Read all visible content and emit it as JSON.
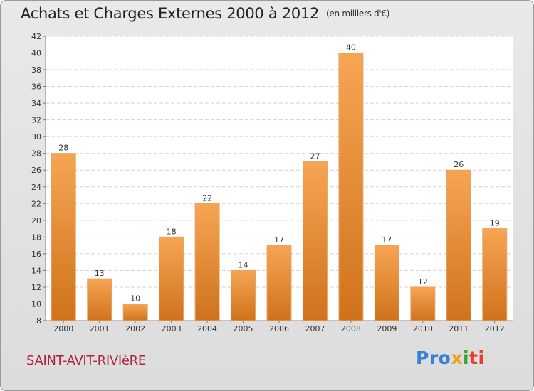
{
  "header": {
    "title": "Achats et Charges Externes 2000 à 2012",
    "subtitle": "(en milliers d'€)"
  },
  "footer": {
    "location": "SAINT-AVIT-RIVIèRE",
    "logo": [
      "Pro",
      "x",
      "i",
      "ti"
    ]
  },
  "colors": {
    "bar_light": "#f6a553",
    "bar_dark": "#d0721c",
    "title_red": "#b01f3d"
  },
  "chart_data": {
    "type": "bar",
    "title": "Achats et Charges Externes 2000 à 2012",
    "xlabel": "",
    "ylabel": "",
    "categories": [
      "2000",
      "2001",
      "2002",
      "2003",
      "2004",
      "2005",
      "2006",
      "2007",
      "2008",
      "2009",
      "2010",
      "2011",
      "2012"
    ],
    "values": [
      28,
      13,
      10,
      18,
      22,
      14,
      17,
      27,
      40,
      17,
      12,
      26,
      19
    ],
    "ylim": [
      8,
      42
    ],
    "yticks": [
      8,
      10,
      12,
      14,
      16,
      18,
      20,
      22,
      24,
      26,
      28,
      30,
      32,
      34,
      36,
      38,
      40,
      42
    ],
    "grid": true
  }
}
